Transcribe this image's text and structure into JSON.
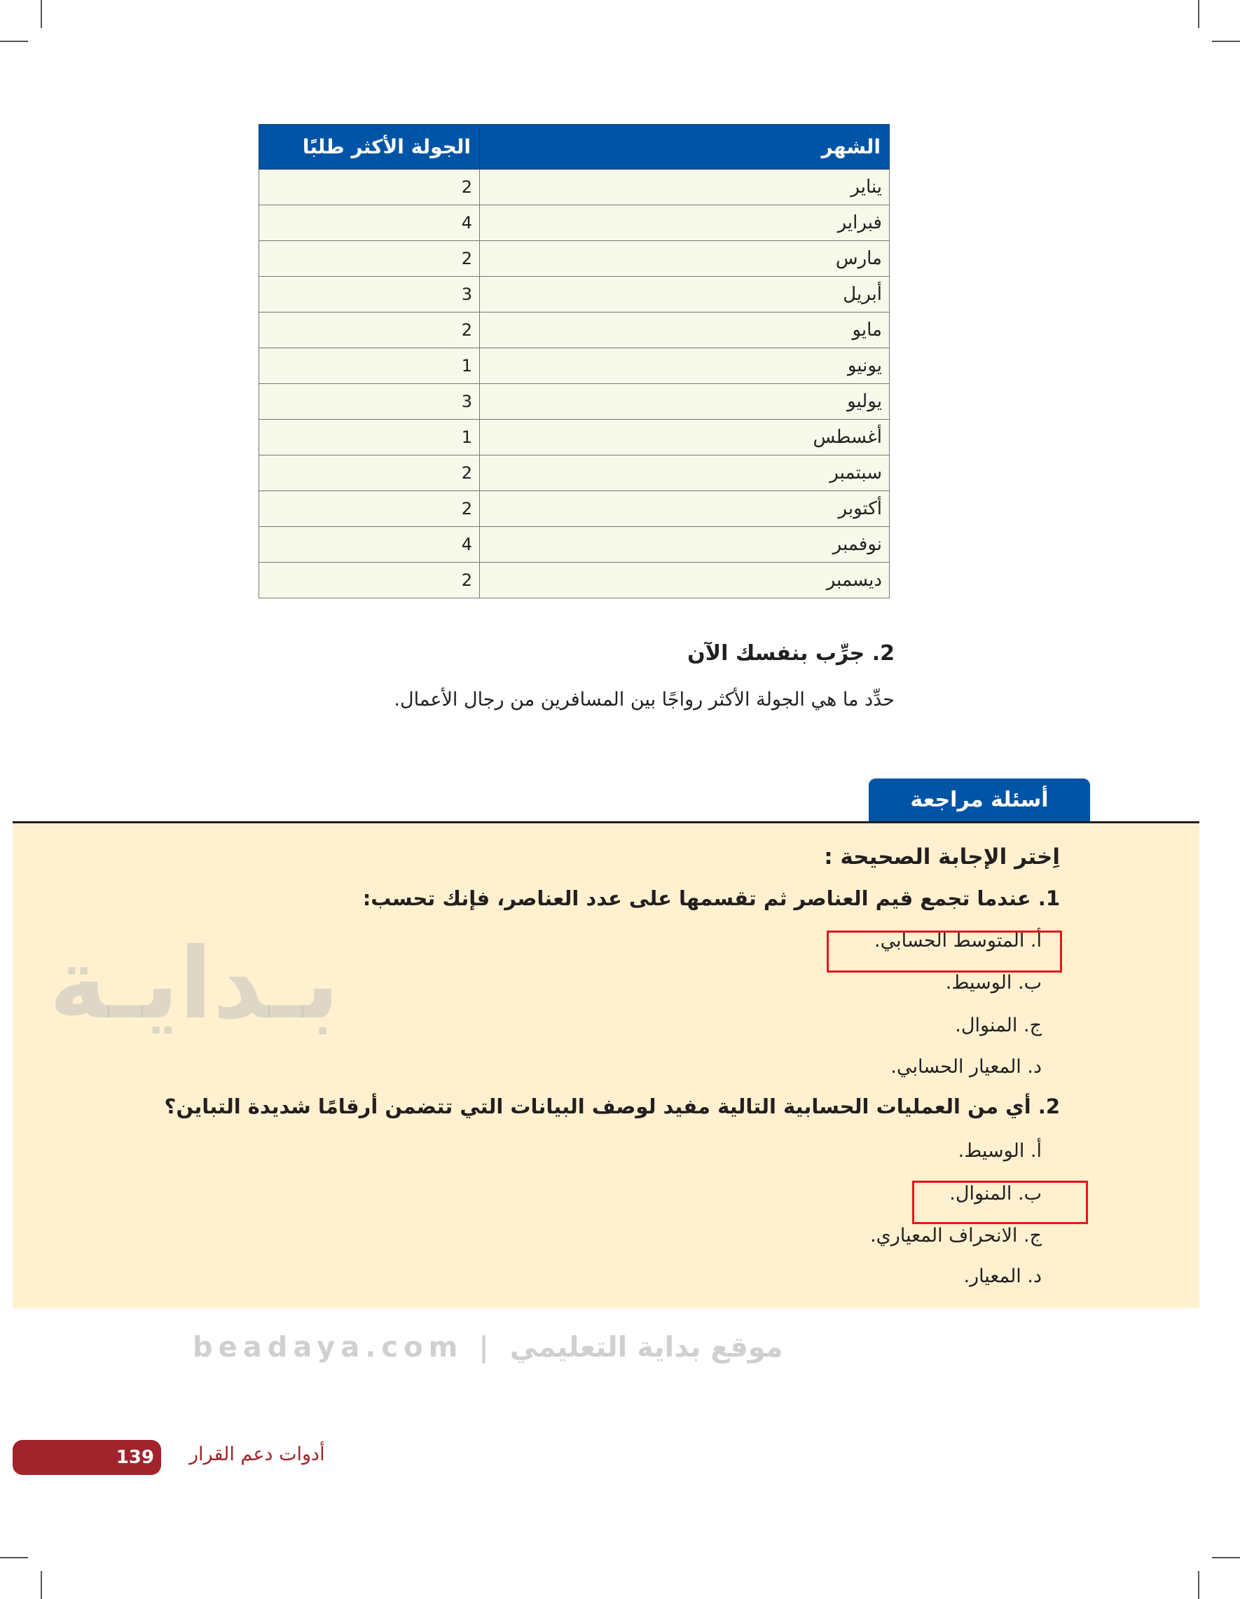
{
  "table": {
    "headers": {
      "month": "الشهر",
      "tour": "الجولة الأكثر طلبًا"
    },
    "rows": [
      {
        "month": "يناير",
        "tour": "2"
      },
      {
        "month": "فبراير",
        "tour": "4"
      },
      {
        "month": "مارس",
        "tour": "2"
      },
      {
        "month": "أبريل",
        "tour": "3"
      },
      {
        "month": "مايو",
        "tour": "2"
      },
      {
        "month": "يونيو",
        "tour": "1"
      },
      {
        "month": "يوليو",
        "tour": "3"
      },
      {
        "month": "أغسطس",
        "tour": "1"
      },
      {
        "month": "سبتمبر",
        "tour": "2"
      },
      {
        "month": "أكتوبر",
        "tour": "2"
      },
      {
        "month": "نوفمبر",
        "tour": "4"
      },
      {
        "month": "ديسمبر",
        "tour": "2"
      }
    ]
  },
  "try_yourself": {
    "title": "2. جرِّب بنفسك الآن",
    "text": "حدِّد ما هي الجولة الأكثر رواجًا بين المسافرين من رجال الأعمال."
  },
  "review": {
    "tab_label": "أسئلة مراجعة",
    "instruction": "اِختر الإجابة الصحيحة :",
    "questions": [
      {
        "text": "1. عندما تجمع قيم العناصر ثم تقسمها على عدد العناصر، فإنك تحسب:",
        "options": [
          "أ.   المتوسط الحسابي.",
          "ب. الوسيط.",
          "ج.  المنوال.",
          "د.   المعيار الحسابي."
        ],
        "selected": 0
      },
      {
        "text": "2. أي من العمليات الحسابية التالية مفيد لوصف البيانات التي تتضمن أرقامًا شديدة التباين؟",
        "options": [
          "أ.   الوسيط.",
          "ب. المنوال.",
          "ج.  الانحراف المعياري.",
          "د.   المعيار."
        ],
        "selected": 1
      }
    ]
  },
  "watermark": {
    "logo": "بـدايـة",
    "site": "beadaya.com | موقع بداية التعليمي"
  },
  "footer": {
    "page_number": "139",
    "chapter": "أدوات دعم القرار"
  },
  "colors": {
    "header_blue": "#0054a6",
    "panel": "#fff1d0",
    "highlight": "#e8141c",
    "footer": "#a1232b"
  }
}
